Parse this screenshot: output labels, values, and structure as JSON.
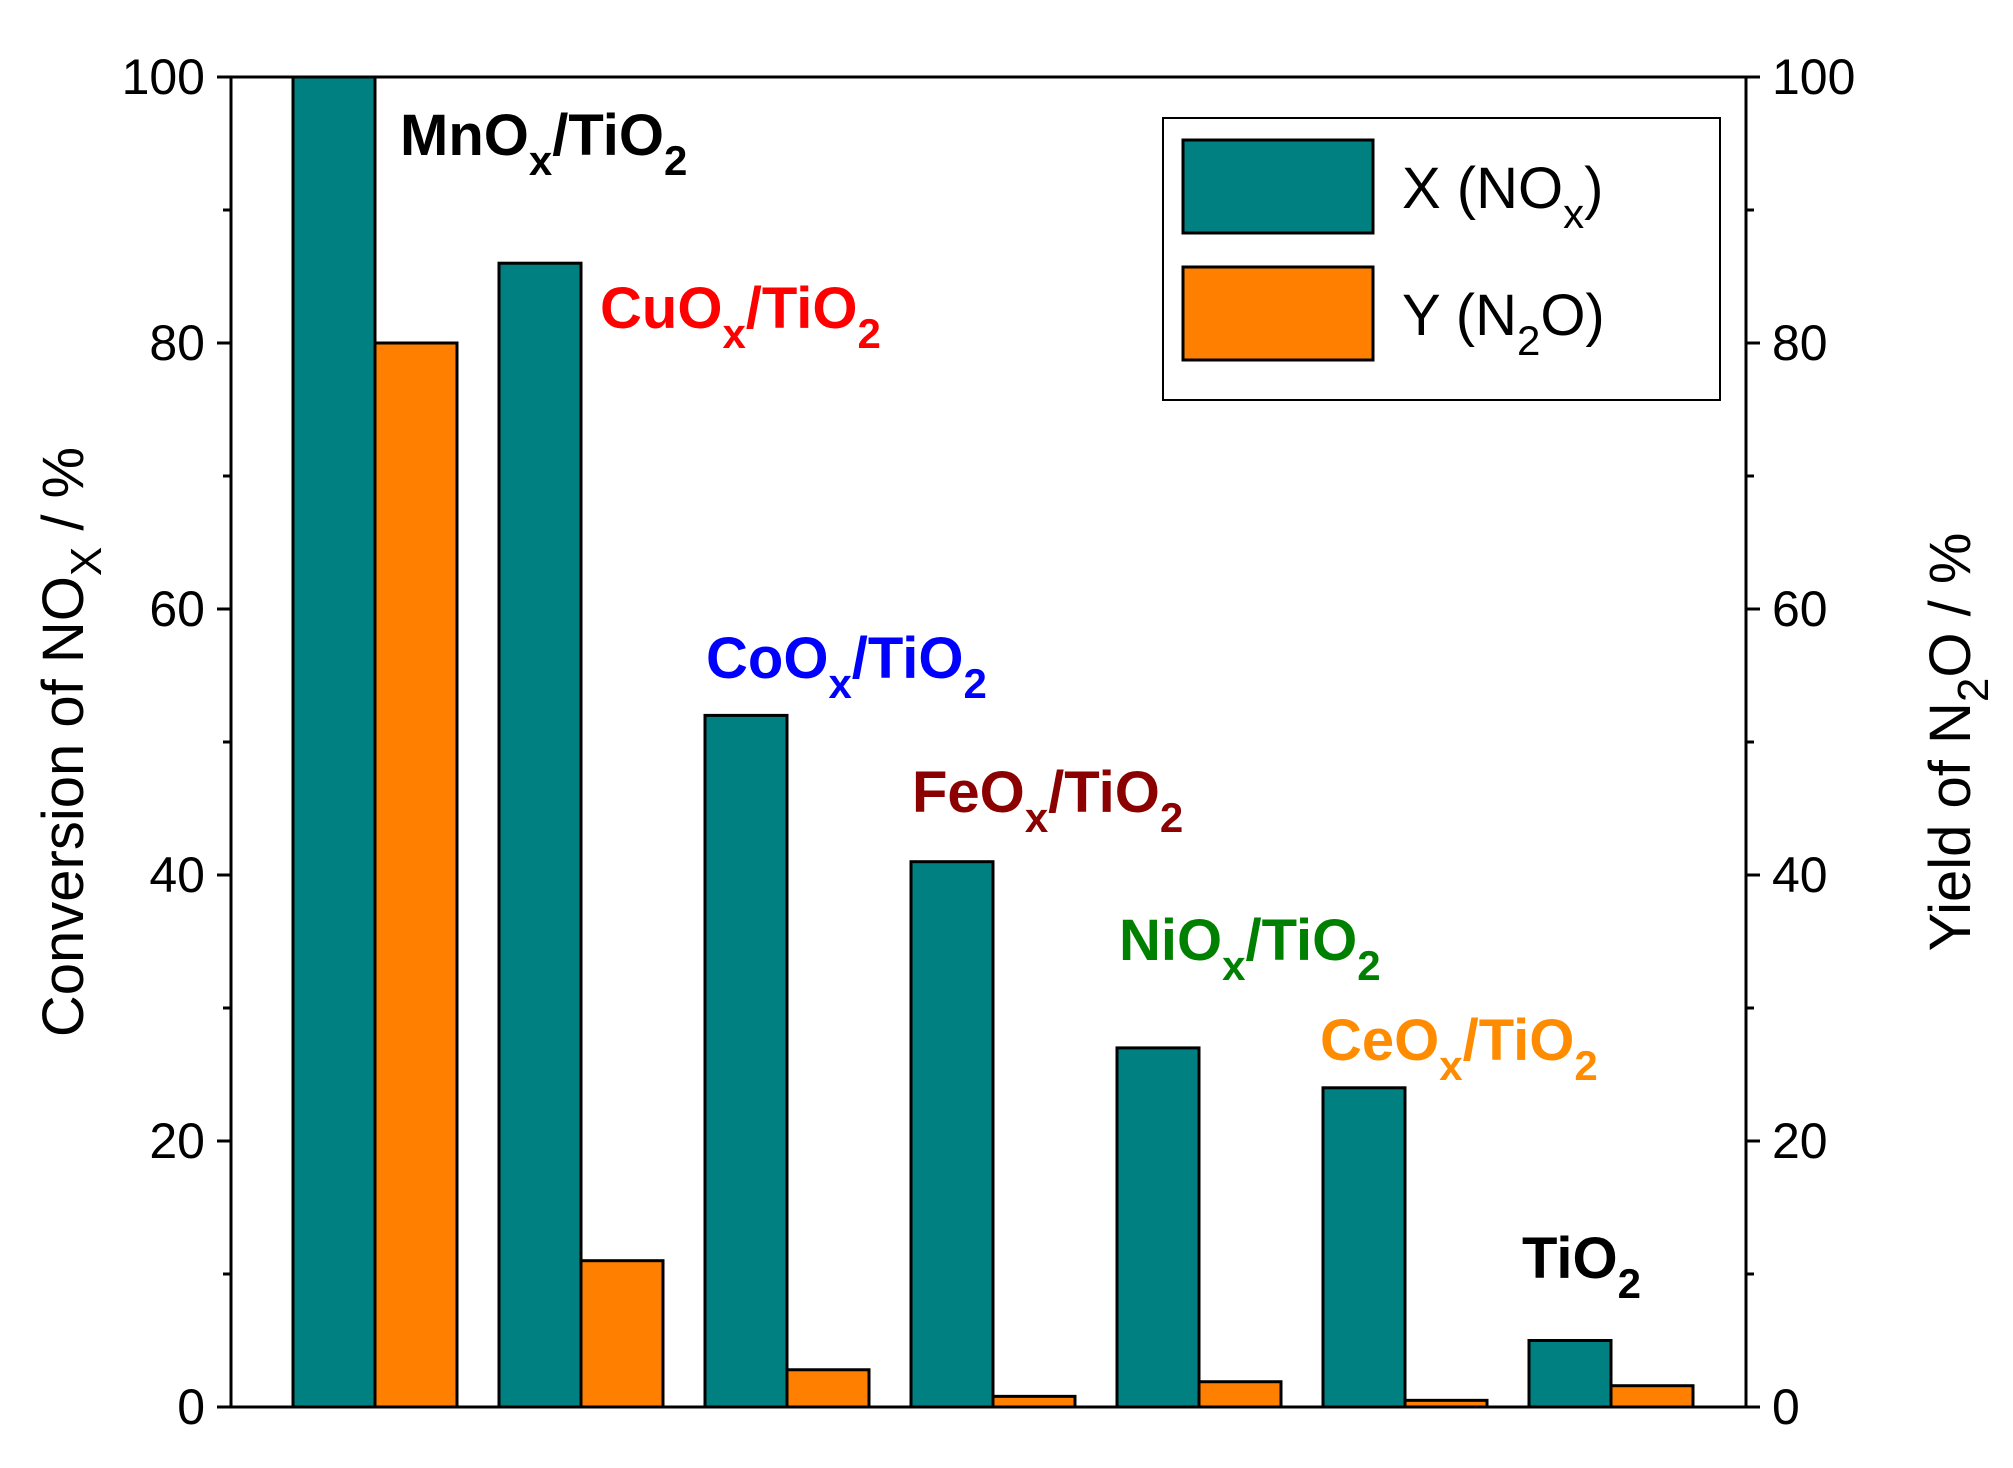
{
  "chart_data": {
    "type": "bar",
    "categories": [
      "MnOx/TiO2",
      "CuOx/TiO2",
      "CoOx/TiO2",
      "FeOx/TiO2",
      "NiOx/TiO2",
      "CeOx/TiO2",
      "TiO2"
    ],
    "series": [
      {
        "name": "X (NOx)",
        "axis": "left",
        "color": "#008080",
        "values": [
          100,
          86,
          52,
          41,
          27,
          24,
          5
        ]
      },
      {
        "name": "Y (N2O)",
        "axis": "right",
        "color": "#ff8000",
        "values": [
          80,
          11,
          2.8,
          0.8,
          1.9,
          0.5,
          1.6
        ]
      }
    ],
    "category_labels": [
      {
        "main": "MnO",
        "sub1": "x",
        "mid": "/TiO",
        "sub2": "2",
        "color": "#000000"
      },
      {
        "main": "CuO",
        "sub1": "x",
        "mid": "/TiO",
        "sub2": "2",
        "color": "#ff0000"
      },
      {
        "main": "CoO",
        "sub1": "x",
        "mid": "/TiO",
        "sub2": "2",
        "color": "#0000ff"
      },
      {
        "main": "FeO",
        "sub1": "x",
        "mid": "/TiO",
        "sub2": "2",
        "color": "#8b0000"
      },
      {
        "main": "NiO",
        "sub1": "x",
        "mid": "/TiO",
        "sub2": "2",
        "color": "#008000"
      },
      {
        "main": "CeO",
        "sub1": "x",
        "mid": "/TiO",
        "sub2": "2",
        "color": "#ff8c00"
      },
      {
        "main": "TiO",
        "sub1": "",
        "mid": "",
        "sub2": "2",
        "color": "#000000"
      }
    ],
    "ylabel_left": {
      "main": "Conversion of NO",
      "sub": "X",
      "tail": " / %"
    },
    "ylabel_right": {
      "main": "Yield of N",
      "sub": "2",
      "tail": "O / %"
    },
    "ylim": [
      0,
      100
    ],
    "yticks": [
      0,
      20,
      40,
      60,
      80,
      100
    ],
    "legend": [
      {
        "pre": "X (NO",
        "sub": "x",
        "post": ")",
        "color": "#008080"
      },
      {
        "pre": "Y (N",
        "sub": "2",
        "post": "O)",
        "color": "#ff8000"
      }
    ],
    "legend_position": "top-right"
  }
}
